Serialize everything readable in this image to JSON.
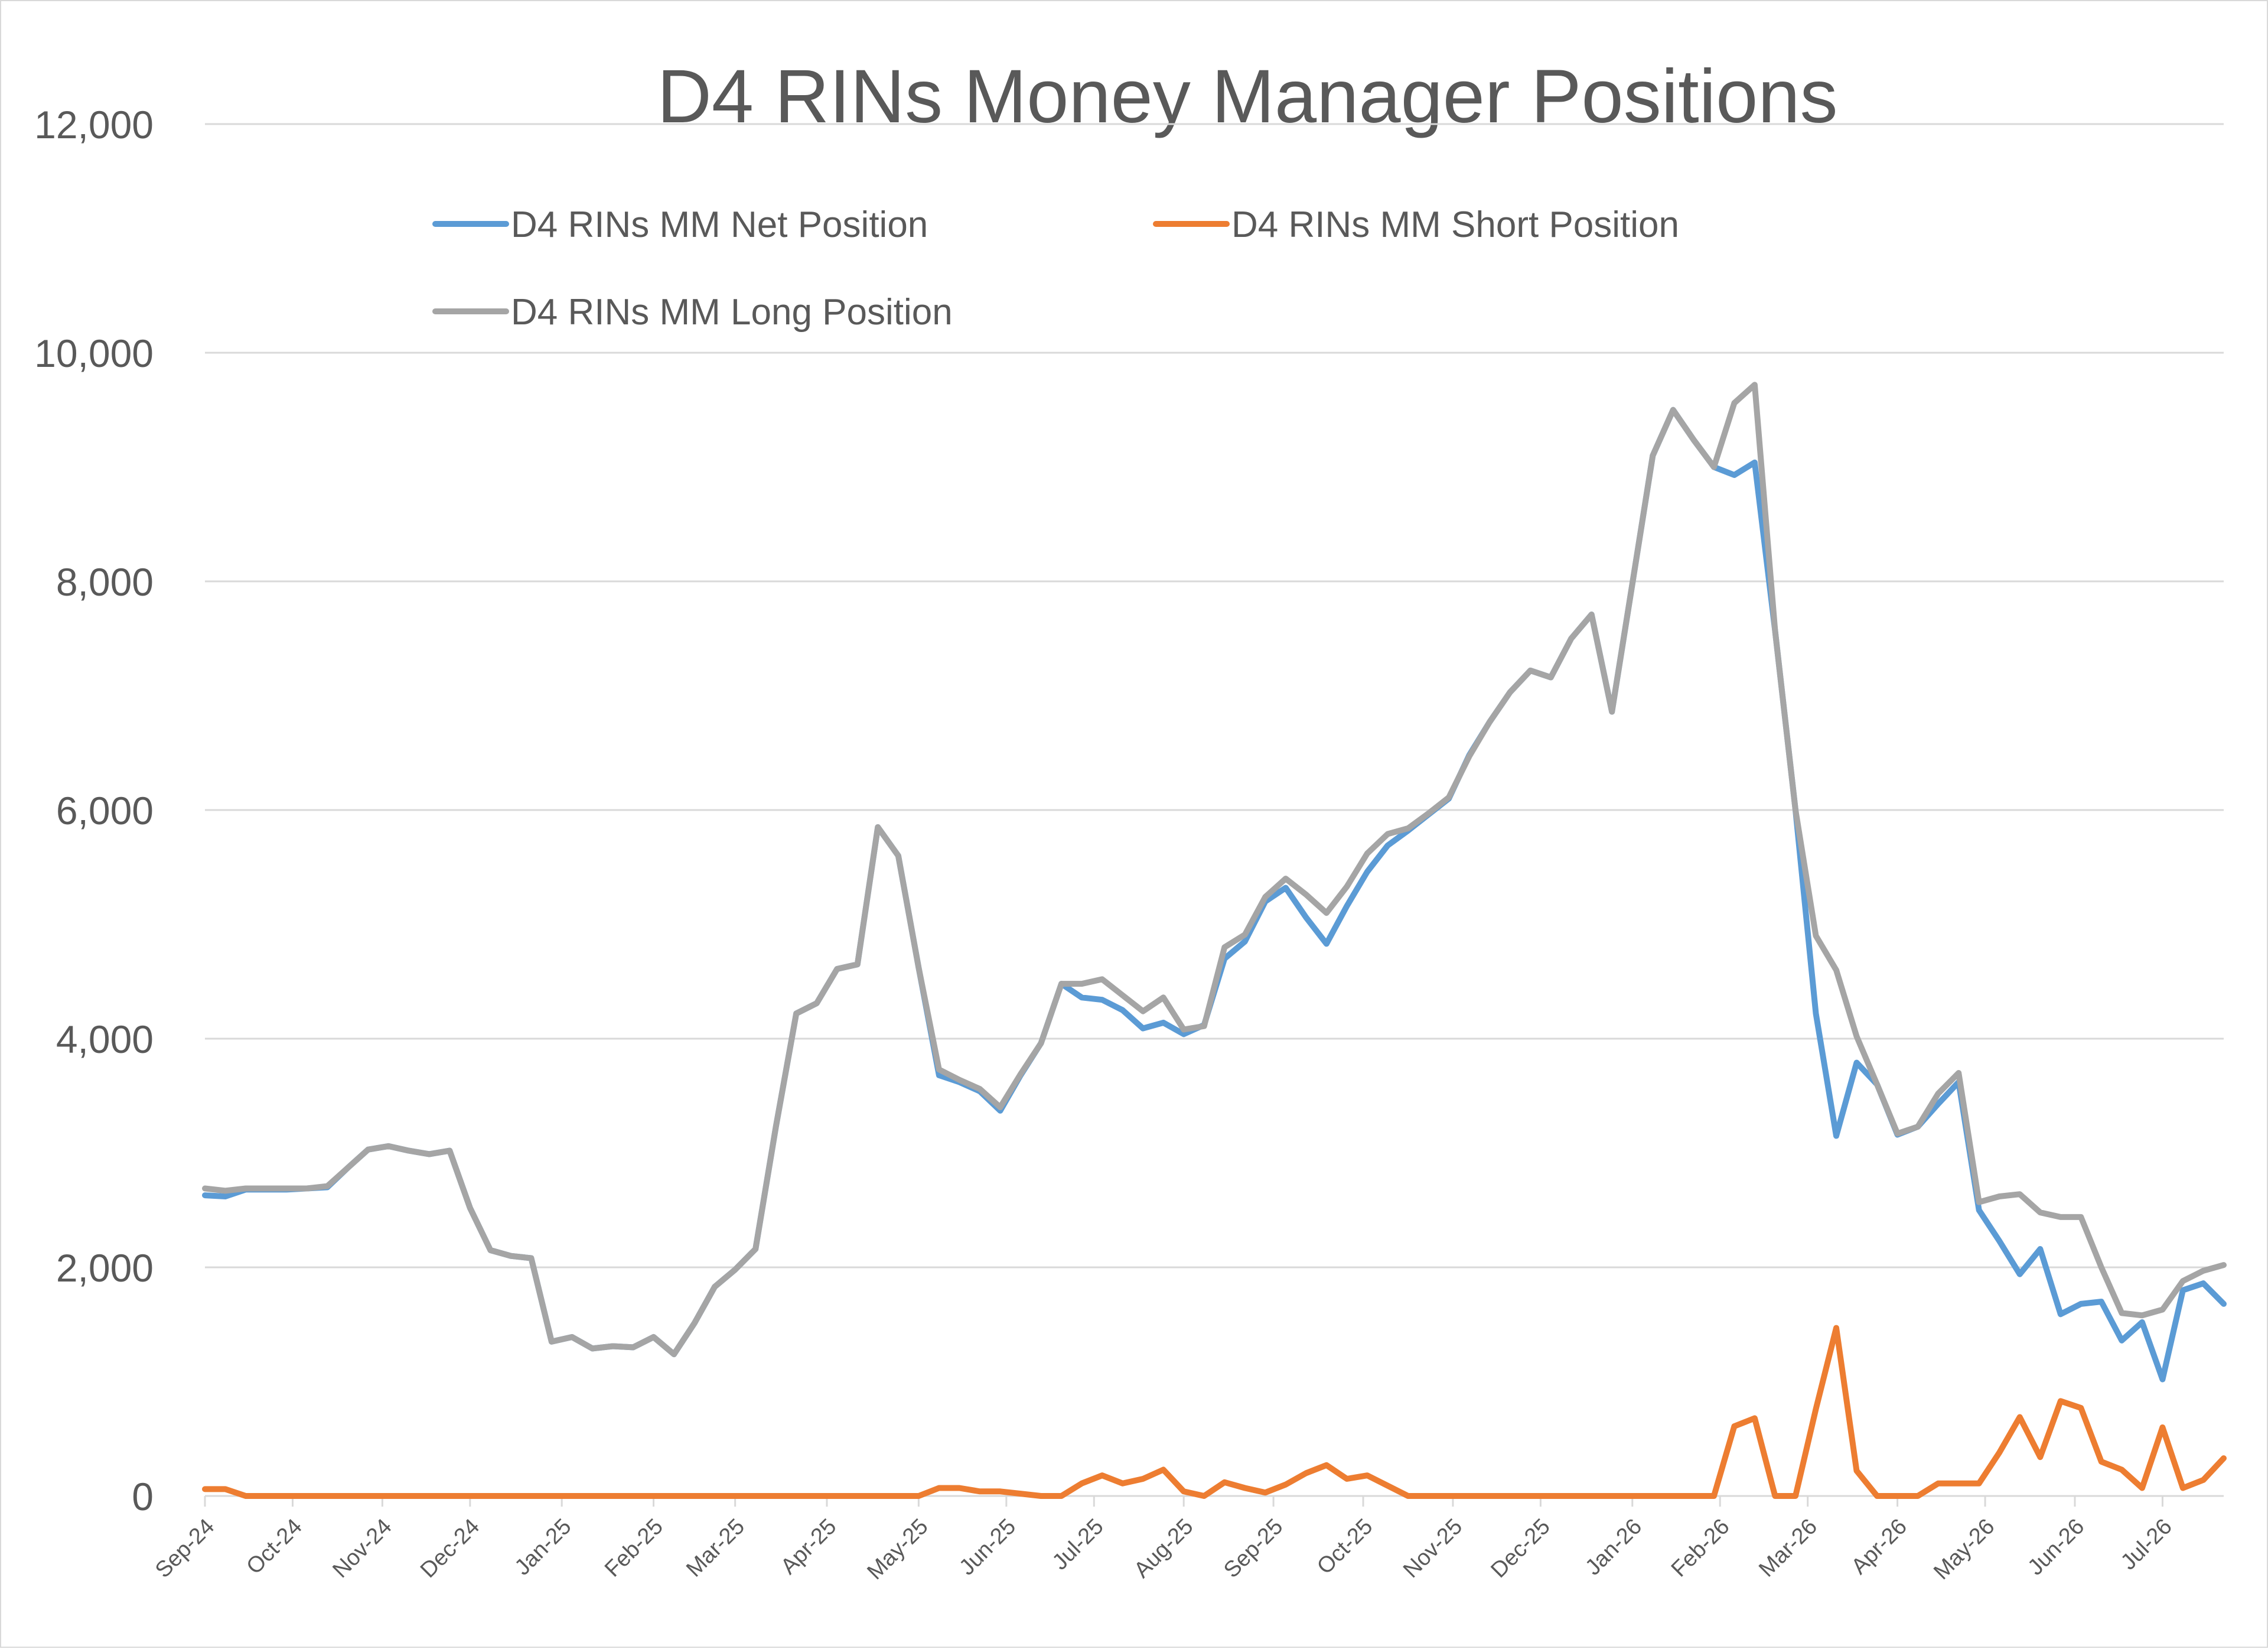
{
  "chart_data": {
    "type": "line",
    "title": "D4 RINs Money Manager Positions",
    "xlabel": "",
    "ylabel": "",
    "ylim": [
      0,
      12000
    ],
    "y_ticks": [
      0,
      2000,
      4000,
      6000,
      8000,
      10000,
      12000
    ],
    "y_tick_labels": [
      "0",
      "2,000",
      "4,000",
      "6,000",
      "8,000",
      "10,000",
      "12,000"
    ],
    "x_tick_labels": [
      "Sep-24",
      "Oct-24",
      "Nov-24",
      "Dec-24",
      "Jan-25",
      "Feb-25",
      "Mar-25",
      "Apr-25",
      "May-25",
      "Jun-25",
      "Jul-25",
      "Aug-25",
      "Sep-25",
      "Oct-25",
      "Nov-25",
      "Dec-25",
      "Jan-26",
      "Feb-26",
      "Mar-26",
      "Apr-26",
      "May-26",
      "Jun-26",
      "Jul-26"
    ],
    "x_tick_index": [
      0,
      4.3,
      8.7,
      13,
      17.5,
      22,
      26,
      30.5,
      35,
      39.3,
      43.6,
      48,
      52.4,
      56.8,
      61.2,
      65.5,
      70,
      74.3,
      78.6,
      83,
      87.3,
      91.7,
      96
    ],
    "grid": "horizontal",
    "legend_position": "top",
    "series": [
      {
        "name": "D4 RINs MM Net Position",
        "color": "#5b9bd5",
        "values": [
          2630,
          2620,
          2680,
          2680,
          2680,
          2690,
          2700,
          2870,
          3030,
          3060,
          3020,
          2990,
          3020,
          2520,
          2150,
          2100,
          2080,
          1350,
          1390,
          1290,
          1310,
          1300,
          1390,
          1240,
          1510,
          1830,
          1980,
          2160,
          3230,
          4220,
          4310,
          4610,
          4650,
          5850,
          5600,
          4620,
          3680,
          3620,
          3540,
          3370,
          3680,
          3960,
          4480,
          4360,
          4340,
          4250,
          4090,
          4140,
          4040,
          4120,
          4700,
          4850,
          5200,
          5320,
          5060,
          4830,
          5160,
          5460,
          5690,
          5820,
          5960,
          6100,
          6480,
          6770,
          7030,
          7220,
          7160,
          7500,
          7710,
          6860,
          7980,
          9100,
          9500,
          9240,
          9000,
          8930,
          9040,
          7570,
          6000,
          4220,
          3150,
          3790,
          3600,
          3160,
          3230,
          3430,
          3620,
          2500,
          2230,
          1940,
          2160,
          1590,
          1680,
          1700,
          1360,
          1520,
          1020,
          1800,
          1860,
          1680
        ]
      },
      {
        "name": "D4 RINs MM Short Position",
        "color": "#ed7d31",
        "values": [
          60,
          60,
          0,
          0,
          0,
          0,
          0,
          0,
          0,
          0,
          0,
          0,
          0,
          0,
          0,
          0,
          0,
          0,
          0,
          0,
          0,
          0,
          0,
          0,
          0,
          0,
          0,
          0,
          0,
          0,
          0,
          0,
          0,
          0,
          0,
          0,
          70,
          70,
          40,
          40,
          20,
          0,
          0,
          110,
          180,
          110,
          150,
          230,
          40,
          0,
          120,
          70,
          30,
          100,
          200,
          270,
          150,
          180,
          90,
          0,
          0,
          0,
          0,
          0,
          0,
          0,
          0,
          0,
          0,
          0,
          0,
          0,
          0,
          0,
          0,
          610,
          680,
          0,
          0,
          760,
          1470,
          220,
          0,
          0,
          0,
          110,
          110,
          110,
          380,
          690,
          340,
          830,
          770,
          300,
          230,
          70,
          600,
          70,
          140,
          330
        ]
      },
      {
        "name": "D4 RINs MM Long Position",
        "color": "#a5a5a5",
        "values": [
          2690,
          2670,
          2690,
          2690,
          2690,
          2690,
          2710,
          2870,
          3030,
          3060,
          3020,
          2990,
          3020,
          2520,
          2150,
          2100,
          2080,
          1350,
          1390,
          1290,
          1310,
          1300,
          1390,
          1240,
          1510,
          1830,
          1980,
          2160,
          3230,
          4220,
          4310,
          4610,
          4650,
          5850,
          5600,
          4620,
          3730,
          3640,
          3560,
          3400,
          3690,
          3960,
          4480,
          4480,
          4520,
          4380,
          4240,
          4360,
          4080,
          4110,
          4800,
          4910,
          5240,
          5400,
          5260,
          5100,
          5330,
          5620,
          5790,
          5840,
          5970,
          6110,
          6470,
          6770,
          7030,
          7220,
          7160,
          7500,
          7710,
          6860,
          7980,
          9100,
          9500,
          9240,
          9000,
          9560,
          9720,
          7570,
          6000,
          4900,
          4600,
          4020,
          3600,
          3170,
          3230,
          3520,
          3700,
          2570,
          2620,
          2640,
          2480,
          2440,
          2440,
          2000,
          1600,
          1580,
          1630,
          1880,
          1970,
          2020
        ]
      }
    ]
  }
}
